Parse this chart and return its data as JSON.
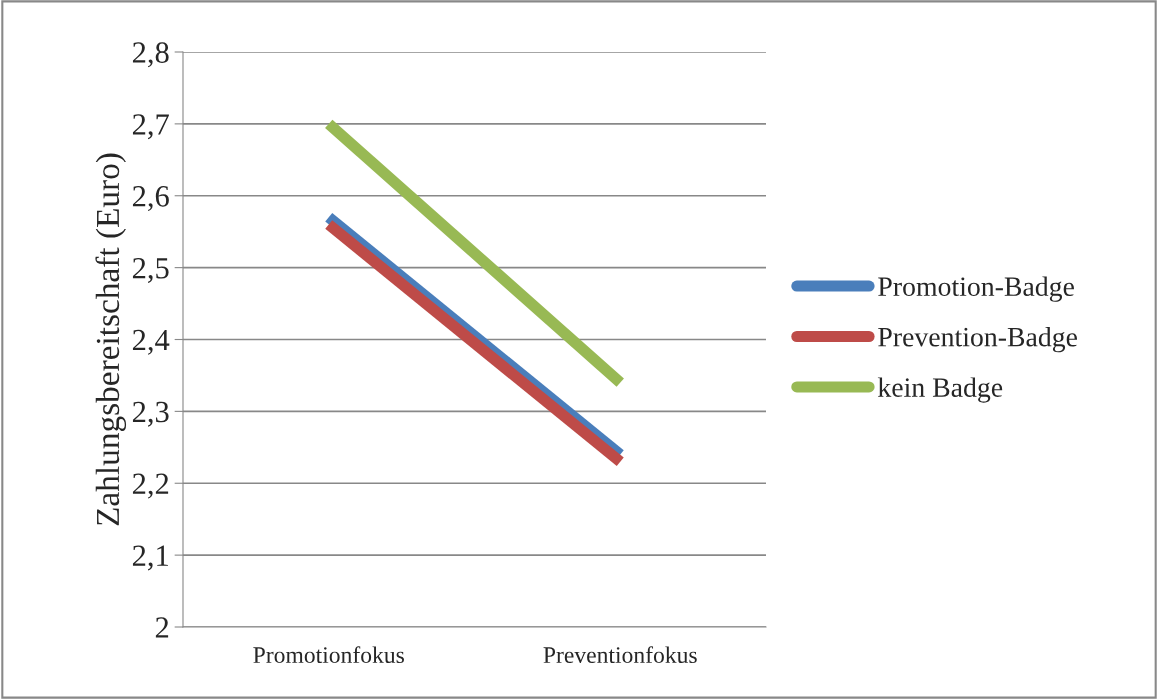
{
  "chart_data": {
    "type": "line",
    "ylabel": "Zahlungsbereitschaft (Euro)",
    "categories": [
      "Promotionfokus",
      "Preventionfokus"
    ],
    "series": [
      {
        "name": "Promotion-Badge",
        "color": "#4a7ebb",
        "values": [
          2.57,
          2.24
        ]
      },
      {
        "name": "Prevention-Badge",
        "color": "#be4b48",
        "values": [
          2.56,
          2.23
        ]
      },
      {
        "name": "kein Badge",
        "color": "#98b954",
        "values": [
          2.7,
          2.34
        ]
      }
    ],
    "ylim": [
      2,
      2.8
    ],
    "yticks": [
      {
        "value": 2,
        "label": "2"
      },
      {
        "value": 2.1,
        "label": "2,1"
      },
      {
        "value": 2.2,
        "label": "2,2"
      },
      {
        "value": 2.3,
        "label": "2,3"
      },
      {
        "value": 2.4,
        "label": "2,4"
      },
      {
        "value": 2.5,
        "label": "2,5"
      },
      {
        "value": 2.6,
        "label": "2,6"
      },
      {
        "value": 2.7,
        "label": "2,7"
      },
      {
        "value": 2.8,
        "label": "2,8"
      }
    ],
    "grid": "y",
    "legend": "right",
    "marker": "none",
    "line_style": "solid"
  }
}
